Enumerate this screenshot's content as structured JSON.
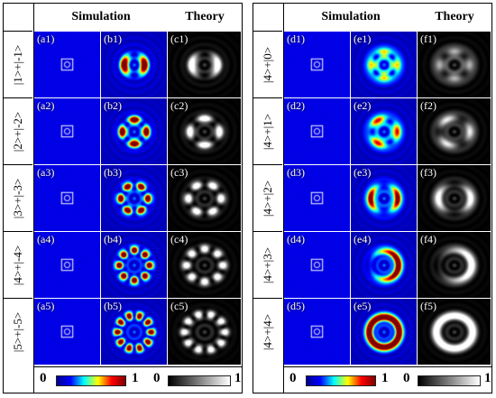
{
  "headers": {
    "simulation": "Simulation",
    "theory": "Theory"
  },
  "left_panel": {
    "rows": [
      {
        "label": "|1>+|-1>",
        "tags": [
          "(a1)",
          "(b1)",
          "(c1)"
        ]
      },
      {
        "label": "|2>+|-2>",
        "tags": [
          "(a2)",
          "(b2)",
          "(c2)"
        ]
      },
      {
        "label": "|3>+|-3>",
        "tags": [
          "(a3)",
          "(b3)",
          "(c3)"
        ]
      },
      {
        "label": "|4>+|-4>",
        "tags": [
          "(a4)",
          "(b4)",
          "(c4)"
        ]
      },
      {
        "label": "|5>+|-5>",
        "tags": [
          "(a5)",
          "(b5)",
          "(c5)"
        ]
      }
    ]
  },
  "right_panel": {
    "rows": [
      {
        "label": "|4>+|0>",
        "tags": [
          "(d1)",
          "(e1)",
          "(f1)"
        ]
      },
      {
        "label": "|4>+|1>",
        "tags": [
          "(d2)",
          "(e2)",
          "(f2)"
        ]
      },
      {
        "label": "|4>+|2>",
        "tags": [
          "(d3)",
          "(e3)",
          "(f3)"
        ]
      },
      {
        "label": "|4>+|3>",
        "tags": [
          "(d4)",
          "(e4)",
          "(f4)"
        ]
      },
      {
        "label": "|4>+|4>",
        "tags": [
          "(d5)",
          "(e5)",
          "(f5)"
        ]
      }
    ]
  },
  "colorbars": {
    "sim_min": "0",
    "sim_max": "1",
    "theory_min": "0",
    "theory_max": "1",
    "sim_colormap": "jet",
    "theory_colormap": "gray"
  },
  "colors": {
    "border": "#000000",
    "tag_text": "#ffffff"
  }
}
